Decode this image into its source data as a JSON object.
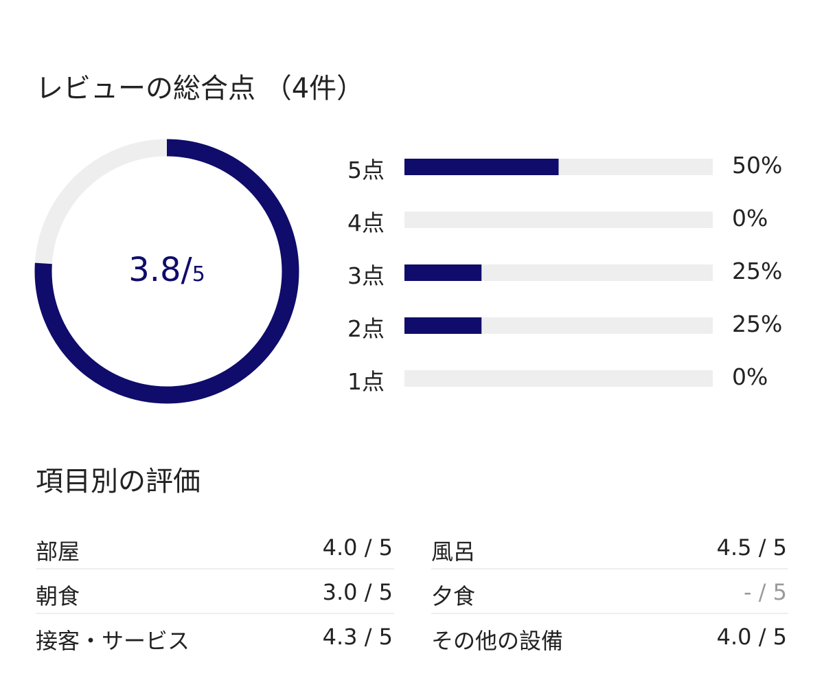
{
  "title": "レビューの総合点 （4件）",
  "rating": {
    "score": 3.8,
    "separator": "/",
    "max": 5,
    "color": "#0f0c6b",
    "track_color": "#eeeeee"
  },
  "distribution": [
    {
      "label": "5点",
      "percent": 50,
      "percent_label": "50%"
    },
    {
      "label": "4点",
      "percent": 0,
      "percent_label": "0%"
    },
    {
      "label": "3点",
      "percent": 25,
      "percent_label": "25%"
    },
    {
      "label": "2点",
      "percent": 25,
      "percent_label": "25%"
    },
    {
      "label": "1点",
      "percent": 0,
      "percent_label": "0%"
    }
  ],
  "categories_title": "項目別の評価",
  "categories": [
    {
      "name": "部屋",
      "score": "4.0 / 5"
    },
    {
      "name": "風呂",
      "score": "4.5 / 5"
    },
    {
      "name": "朝食",
      "score": "3.0 / 5"
    },
    {
      "name": "夕食",
      "score": "- / 5",
      "color": "#9a9a9a"
    },
    {
      "name": "接客・サービス",
      "score": "4.3 / 5"
    },
    {
      "name": "その他の設備",
      "score": "4.0 / 5"
    }
  ]
}
